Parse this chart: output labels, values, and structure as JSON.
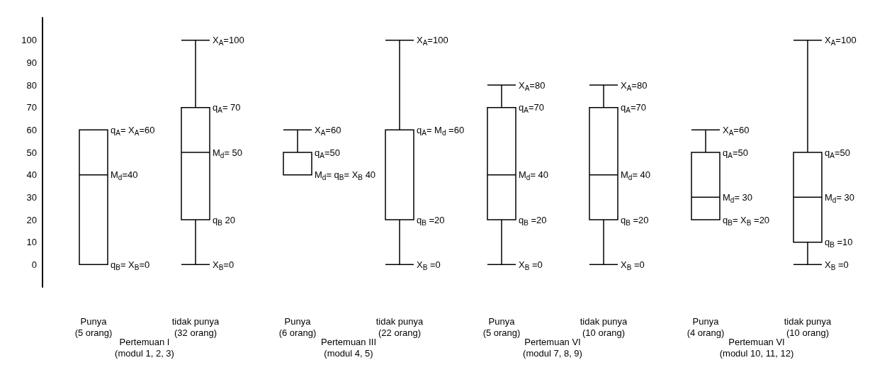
{
  "chart_data": {
    "type": "box",
    "categories": [
      "Punya\n(5 orang)",
      "tidak punya\n(32 orang)",
      "Punya\n(6 orang)",
      "tidak punya\n(22 orang)",
      "Punya\n(5 orang)",
      "tidak punya\n(10 orang)",
      "Punya\n(4 orang)",
      "tidak punya\n(10 orang)"
    ],
    "boxes": [
      {
        "low": 0,
        "q1": 0,
        "median": 40,
        "q3": 60,
        "high": 60
      },
      {
        "low": 0,
        "q1": 20,
        "median": 50,
        "q3": 70,
        "high": 100
      },
      {
        "low": 40,
        "q1": 40,
        "median": 40,
        "q3": 50,
        "high": 60
      },
      {
        "low": 0,
        "q1": 20,
        "median": 60,
        "q3": 60,
        "high": 100
      },
      {
        "low": 0,
        "q1": 20,
        "median": 40,
        "q3": 70,
        "high": 80
      },
      {
        "low": 0,
        "q1": 20,
        "median": 40,
        "q3": 70,
        "high": 80
      },
      {
        "low": 20,
        "q1": 20,
        "median": 30,
        "q3": 50,
        "high": 60
      },
      {
        "low": 0,
        "q1": 10,
        "median": 30,
        "q3": 50,
        "high": 100
      }
    ],
    "color": "#000000",
    "ylim": [
      -10,
      110
    ],
    "yticks": [
      0,
      10,
      20,
      30,
      40,
      50,
      60,
      70,
      80,
      90,
      100
    ],
    "grid": false,
    "annotations": [
      {
        "text": "q$_{A}$= X$_{A}$=60",
        "x": "Punya\n(5 orang)",
        "y": 60
      },
      {
        "text": "M$_{d}$=40",
        "x": "Punya\n(5 orang)",
        "y": 40
      },
      {
        "text": "q$_{B}$= X$_{B}$=0",
        "x": "Punya\n(5 orang)",
        "y": 0
      },
      {
        "text": "X$_{A}$=100",
        "x": "tidak punya\n(32 orang)",
        "y": 100
      },
      {
        "text": "q$_{A}$= 70",
        "x": "tidak punya\n(32 orang)",
        "y": 70
      },
      {
        "text": "M$_{d}$= 50",
        "x": "tidak punya\n(32 orang)",
        "y": 50
      },
      {
        "text": "q$_{B}$ 20",
        "x": "tidak punya\n(32 orang)",
        "y": 20
      },
      {
        "text": "X$_{B}$=0",
        "x": "tidak punya\n(32 orang)",
        "y": 0
      },
      {
        "text": "X$_{A}$=60",
        "x": "Punya\n(6 orang)",
        "y": 60
      },
      {
        "text": "q$_{A}$=50",
        "x": "Punya\n(6 orang)",
        "y": 50
      },
      {
        "text": "M$_{d}$= q$_{B}$= X$_{B}$ 40",
        "x": "Punya\n(6 orang)",
        "y": 40
      },
      {
        "text": "X$_{A}$=100",
        "x": "tidak punya\n(22 orang)",
        "y": 100
      },
      {
        "text": "q$_{A}$= M$_{d}$ =60",
        "x": "tidak punya\n(22 orang)",
        "y": 60
      },
      {
        "text": "q$_{B}$ =20",
        "x": "tidak punya\n(22 orang)",
        "y": 20
      },
      {
        "text": "X$_{B}$ =0",
        "x": "tidak punya\n(22 orang)",
        "y": 0
      },
      "X$_{A}$=80",
      "q$_{A}$=70",
      "M$_{d}$= 40",
      "q$_{B}$ =20",
      "X$_{B}$ =0",
      {
        "text": "X$_{A}$=80",
        "x": "tidak punya\n(10 orang)",
        "y": 80
      },
      {
        "text": "q$_{A}$=70",
        "x": "tidak punya\n(10 orang)",
        "y": 70
      },
      {
        "text": "M$_{d}$= 40",
        "x": "tidak punya\n(10 orang)",
        "y": 40
      },
      {
        "text": "q$_{B}$ =20",
        "x": "tidak punya\n(10 orang)",
        "y": 20
      },
      {
        "text": "X$_{B}$ =0",
        "x": "tidak punya\n(10 orang)",
        "y": 0
      },
      {
        "text": "X$_{A}$=60",
        "x": "Punya\n(4 orang)",
        "y": 60
      },
      {
        "text": "q$_{A}$=50",
        "x": "Punya\n(4 orang)",
        "y": 50
      },
      {
        "text": "M$_{d}$= 30",
        "x": "Punya\n(4 orang)",
        "y": 30
      },
      {
        "text": "q$_{B}$= X$_{B}$ =20",
        "x": "Punya\n(4 orang)",
        "y": 20
      },
      "X$_{A}$=100",
      "q$_{A}$=50",
      "M$_{d}$= 30",
      "q$_{B}$ =10",
      "X$_{B}$ =0",
      "Pertemuan I\n(modul 1, 2, 3)",
      "Pertemuan III\n(modul 4, 5)",
      "Pertemuan VI\n(modul 7, 8, 9)",
      "Pertemuan VI\n(modul 10, 11, 12)"
    ]
  }
}
